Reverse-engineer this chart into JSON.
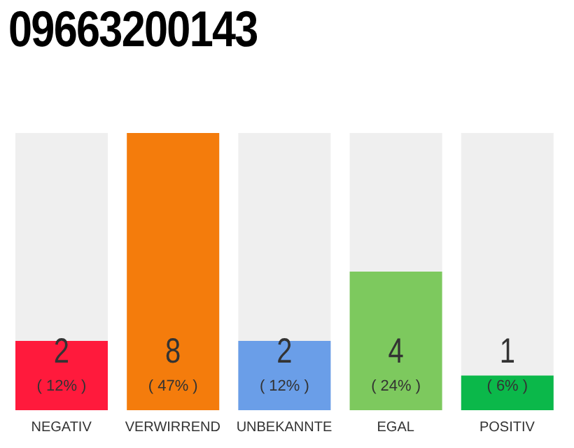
{
  "chart_data": {
    "type": "bar",
    "title": "09663200143",
    "categories": [
      "NEGATIV",
      "VERWIRREND",
      "UNBEKANNTE",
      "EGAL",
      "POSITIV"
    ],
    "values": [
      2,
      8,
      2,
      4,
      1
    ],
    "colors": [
      "#ff1a3c",
      "#f47c0c",
      "#6a9ee8",
      "#7dc95e",
      "#0bb84a"
    ],
    "value_labels": [
      "2\n( 12% )",
      "8\n( 47% )",
      "2\n( 12% )",
      "4\n( 24% )",
      "1\n( 6% )"
    ],
    "ylim": [
      0,
      8
    ],
    "tick_labels": "x"
  }
}
